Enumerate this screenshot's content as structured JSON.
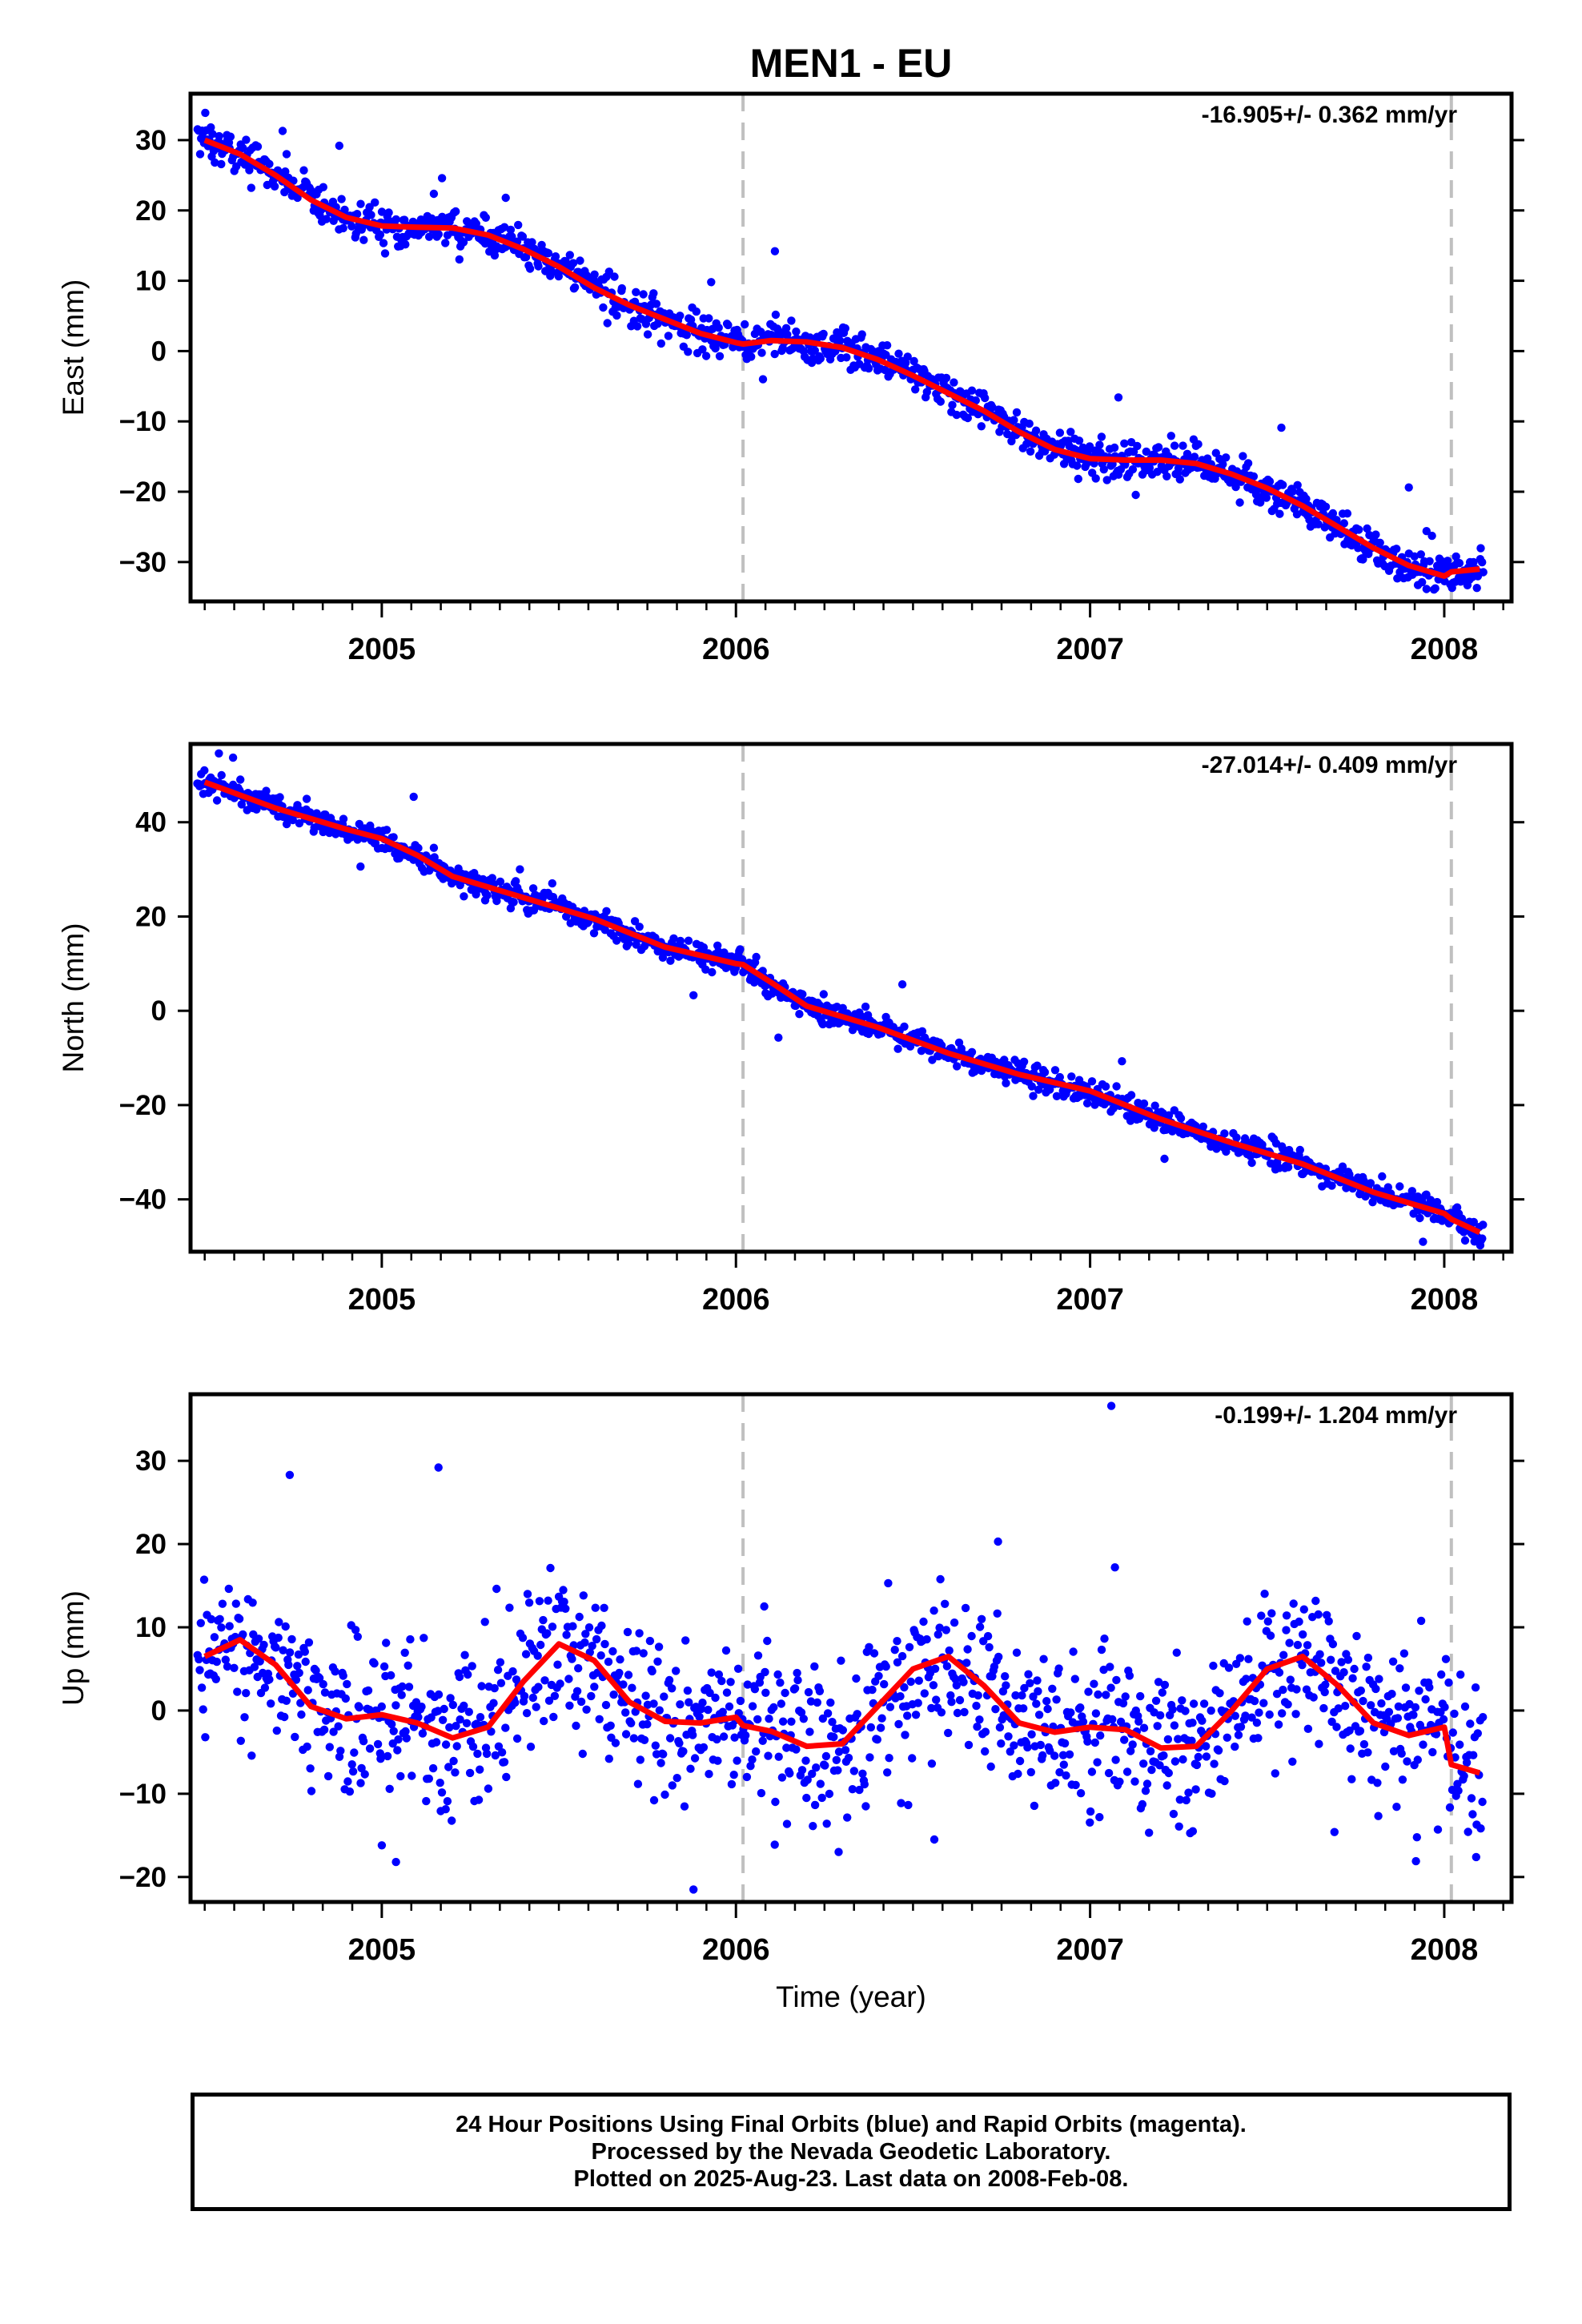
{
  "title": "MEN1 - EU",
  "x_axis_label": "Time (year)",
  "x_ticks": [
    "2005",
    "2006",
    "2007",
    "2008"
  ],
  "colors": {
    "data_points": "#0000ff",
    "model_line": "#ff0000",
    "event_line": "#c0c0c0",
    "frame": "#000000"
  },
  "chart_data": [
    {
      "type": "scatter",
      "id": "east",
      "ylabel": "East (mm)",
      "rate_label": "-16.905+/- 0.362 mm/yr",
      "xlim": [
        2004.46,
        2008.19
      ],
      "ylim": [
        -35.6,
        36.6
      ],
      "yticks": [
        30,
        20,
        10,
        0,
        -10,
        -20,
        -30
      ],
      "xticks": [
        2005,
        2006,
        2007,
        2008
      ],
      "vlines": [
        2006.02,
        2008.02
      ],
      "model": {
        "x": [
          2004.5,
          2004.6,
          2004.7,
          2004.8,
          2004.9,
          2005.0,
          2005.1,
          2005.2,
          2005.3,
          2005.4,
          2005.5,
          2005.6,
          2005.7,
          2005.8,
          2005.9,
          2006.0,
          2006.02,
          2006.1,
          2006.2,
          2006.3,
          2006.4,
          2006.5,
          2006.6,
          2006.7,
          2006.8,
          2006.9,
          2007.0,
          2007.1,
          2007.2,
          2007.3,
          2007.4,
          2007.5,
          2007.6,
          2007.7,
          2007.8,
          2007.9,
          2008.0,
          2008.02,
          2008.1
        ],
        "y": [
          30,
          28,
          25,
          21.5,
          19,
          17.8,
          17.6,
          17.5,
          16.5,
          14.5,
          12,
          9,
          6.5,
          4.5,
          2.5,
          1.2,
          1.0,
          1.5,
          1.3,
          0.5,
          -1.2,
          -3.5,
          -6,
          -8.5,
          -11.5,
          -14,
          -15.3,
          -15.5,
          -15.5,
          -16,
          -17.5,
          -19.5,
          -22,
          -25,
          -28,
          -30.5,
          -32.0,
          -31.4,
          -31
        ]
      },
      "noise_sd": 1.4,
      "outliers": [
        [
          2004.72,
          31.3
        ],
        [
          2004.88,
          29.2
        ],
        [
          2005.17,
          24.6
        ],
        [
          2005.35,
          21.8
        ],
        [
          2005.93,
          9.8
        ],
        [
          2006.11,
          14.2
        ],
        [
          2007.08,
          -6.6
        ],
        [
          2007.54,
          -10.9
        ],
        [
          2007.9,
          -19.4
        ],
        [
          2007.95,
          -25.6
        ]
      ]
    },
    {
      "type": "scatter",
      "id": "north",
      "ylabel": "North (mm)",
      "rate_label": "-27.014+/- 0.409 mm/yr",
      "xlim": [
        2004.46,
        2008.19
      ],
      "ylim": [
        -51.1,
        56.6
      ],
      "yticks": [
        40,
        20,
        0,
        -20,
        -40
      ],
      "xticks": [
        2005,
        2006,
        2007,
        2008
      ],
      "vlines": [
        2006.02,
        2008.02
      ],
      "model": {
        "x": [
          2004.5,
          2004.7,
          2004.9,
          2005.0,
          2005.1,
          2005.2,
          2005.4,
          2005.6,
          2005.8,
          2006.0,
          2006.02,
          2006.1,
          2006.2,
          2006.4,
          2006.6,
          2006.8,
          2007.0,
          2007.2,
          2007.4,
          2007.6,
          2007.8,
          2008.0,
          2008.02,
          2008.1
        ],
        "y": [
          48.5,
          43,
          38.5,
          36.5,
          33,
          28.5,
          24,
          19.5,
          13.5,
          10,
          9.8,
          6,
          1,
          -3.5,
          -9,
          -13.5,
          -17,
          -23,
          -28,
          -32.5,
          -38.5,
          -43,
          -44.2,
          -47
        ]
      },
      "noise_sd": 1.3,
      "outliers": [
        [
          2004.54,
          54.6
        ],
        [
          2004.58,
          53.7
        ],
        [
          2004.94,
          30.6
        ],
        [
          2005.09,
          45.4
        ],
        [
          2005.39,
          30.0
        ],
        [
          2005.88,
          3.3
        ],
        [
          2006.12,
          -5.7
        ],
        [
          2006.47,
          5.6
        ],
        [
          2007.09,
          -10.7
        ],
        [
          2007.21,
          -31.4
        ],
        [
          2007.94,
          -49.0
        ]
      ]
    },
    {
      "type": "scatter",
      "id": "up",
      "ylabel": "Up (mm)",
      "rate_label": "-0.199+/- 1.204 mm/yr",
      "xlim": [
        2004.46,
        2008.19
      ],
      "ylim": [
        -23.0,
        38.0
      ],
      "yticks": [
        30,
        20,
        10,
        0,
        -10,
        -20
      ],
      "xticks": [
        2005,
        2006,
        2007,
        2008
      ],
      "vlines": [
        2006.02,
        2008.02
      ],
      "model": {
        "x": [
          2004.5,
          2004.6,
          2004.7,
          2004.8,
          2004.9,
          2005.0,
          2005.1,
          2005.2,
          2005.3,
          2005.4,
          2005.5,
          2005.6,
          2005.7,
          2005.8,
          2005.9,
          2006.0,
          2006.02,
          2006.1,
          2006.2,
          2006.3,
          2006.4,
          2006.5,
          2006.6,
          2006.7,
          2006.8,
          2006.9,
          2007.0,
          2007.1,
          2007.2,
          2007.3,
          2007.4,
          2007.5,
          2007.6,
          2007.7,
          2007.8,
          2007.9,
          2008.0,
          2008.02,
          2008.1
        ],
        "y": [
          6.5,
          8.5,
          5.5,
          0.5,
          -1.0,
          -0.5,
          -1.5,
          -3.3,
          -2.0,
          3.5,
          8.0,
          6.0,
          1.0,
          -1.3,
          -1.5,
          -0.8,
          -1.8,
          -2.5,
          -4.3,
          -4.0,
          0.5,
          5.0,
          6.5,
          3.0,
          -1.5,
          -2.6,
          -2.0,
          -2.3,
          -4.5,
          -4.3,
          0.0,
          5.0,
          6.5,
          3.0,
          -1.5,
          -3.0,
          -2.0,
          -6.5,
          -7.5
        ]
      },
      "noise_sd": 4.6,
      "outliers": [
        [
          2004.74,
          28.3
        ],
        [
          2005.16,
          29.2
        ],
        [
          2005.04,
          -18.2
        ],
        [
          2005.88,
          -21.5
        ],
        [
          2006.29,
          -17.0
        ],
        [
          2006.08,
          12.5
        ],
        [
          2006.56,
          -15.5
        ],
        [
          2006.74,
          20.3
        ],
        [
          2007.06,
          36.6
        ],
        [
          2007.07,
          17.2
        ],
        [
          2007.29,
          -14.5
        ],
        [
          2007.69,
          -14.6
        ],
        [
          2007.92,
          -18.1
        ],
        [
          2008.09,
          -17.6
        ],
        [
          2005.0,
          -16.2
        ],
        [
          2006.43,
          15.3
        ]
      ]
    }
  ],
  "footer": {
    "line1": "24 Hour Positions Using Final Orbits (blue) and Rapid Orbits (magenta).",
    "line2": "Processed by the Nevada Geodetic Laboratory.",
    "line3": "Plotted on 2025-Aug-23. Last data on 2008-Feb-08."
  }
}
